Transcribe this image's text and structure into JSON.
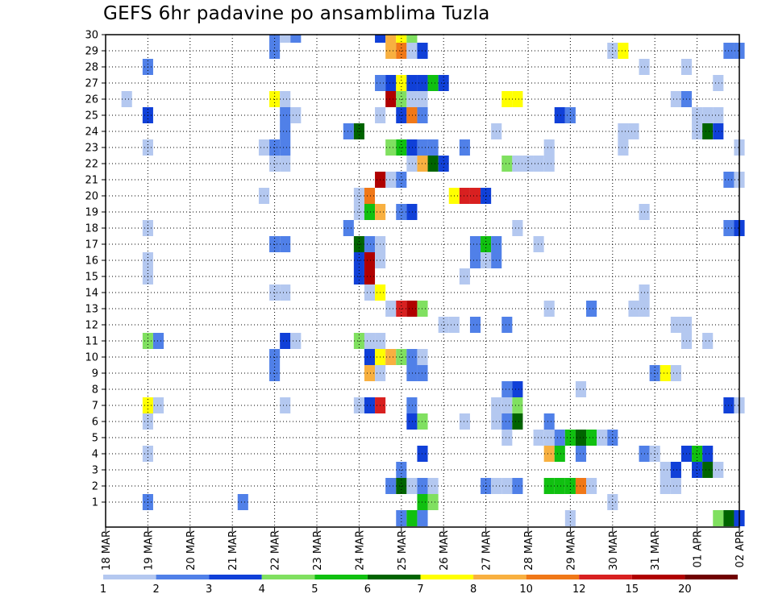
{
  "chart_data": {
    "type": "heatmap",
    "title": "GEFS 6hr padavine po ansamblima Tuzla",
    "xlabel": "",
    "ylabel": "",
    "x_tick_labels": [
      "18 MAR",
      "19 MAR",
      "20 MAR",
      "21 MAR",
      "22 MAR",
      "23 MAR",
      "24 MAR",
      "25 MAR",
      "26 MAR",
      "27 MAR",
      "28 MAR",
      "29 MAR",
      "30 MAR",
      "31 MAR",
      "01 APR",
      "02 APR"
    ],
    "y_tick_labels": [
      "1",
      "2",
      "3",
      "4",
      "5",
      "6",
      "7",
      "8",
      "9",
      "10",
      "11",
      "12",
      "13",
      "14",
      "15",
      "16",
      "17",
      "18",
      "19",
      "20",
      "21",
      "22",
      "23",
      "24",
      "25",
      "26",
      "27",
      "28",
      "29",
      "30"
    ],
    "xlim": [
      0,
      60
    ],
    "ylim": [
      0,
      30
    ],
    "grid": true,
    "legend": "bottom",
    "colorbar": {
      "levels": [
        "1",
        "2",
        "3",
        "4",
        "5",
        "6",
        "7",
        "8",
        "10",
        "12",
        "15",
        "20"
      ],
      "colors": [
        "#b4c8f0",
        "#5080e8",
        "#1040d8",
        "#80e060",
        "#10c010",
        "#006400",
        "#ffff00",
        "#f8b040",
        "#f07818",
        "#d82020",
        "#b00000",
        "#700000"
      ]
    },
    "cells": [
      [
        4,
        1,
        2
      ],
      [
        13,
        1,
        2
      ],
      [
        30,
        1,
        5
      ],
      [
        31,
        1,
        4
      ],
      [
        48,
        1,
        1
      ],
      [
        27,
        2,
        2
      ],
      [
        28,
        2,
        6
      ],
      [
        29,
        2,
        1
      ],
      [
        30,
        2,
        2
      ],
      [
        31,
        2,
        1
      ],
      [
        36,
        2,
        2
      ],
      [
        37,
        2,
        1
      ],
      [
        38,
        2,
        1
      ],
      [
        39,
        2,
        2
      ],
      [
        42,
        2,
        5
      ],
      [
        43,
        2,
        5
      ],
      [
        44,
        2,
        5
      ],
      [
        45,
        2,
        9
      ],
      [
        46,
        2,
        1
      ],
      [
        53,
        2,
        1
      ],
      [
        54,
        2,
        1
      ],
      [
        28,
        3,
        2
      ],
      [
        53,
        3,
        1
      ],
      [
        54,
        3,
        3
      ],
      [
        56,
        3,
        3
      ],
      [
        57,
        3,
        6
      ],
      [
        58,
        3,
        1
      ],
      [
        4,
        4,
        1
      ],
      [
        30,
        4,
        3
      ],
      [
        42,
        4,
        8
      ],
      [
        43,
        4,
        5
      ],
      [
        45,
        4,
        2
      ],
      [
        51,
        4,
        2
      ],
      [
        52,
        4,
        1
      ],
      [
        55,
        4,
        3
      ],
      [
        56,
        4,
        5
      ],
      [
        57,
        4,
        3
      ],
      [
        38,
        5,
        1
      ],
      [
        41,
        5,
        1
      ],
      [
        42,
        5,
        1
      ],
      [
        43,
        5,
        2
      ],
      [
        44,
        5,
        5
      ],
      [
        45,
        5,
        6
      ],
      [
        46,
        5,
        5
      ],
      [
        47,
        5,
        1
      ],
      [
        48,
        5,
        2
      ],
      [
        4,
        6,
        1
      ],
      [
        29,
        6,
        3
      ],
      [
        30,
        6,
        4
      ],
      [
        34,
        6,
        1
      ],
      [
        37,
        6,
        1
      ],
      [
        38,
        6,
        2
      ],
      [
        39,
        6,
        6
      ],
      [
        42,
        6,
        2
      ],
      [
        4,
        7,
        7
      ],
      [
        5,
        7,
        1
      ],
      [
        17,
        7,
        1
      ],
      [
        24,
        7,
        1
      ],
      [
        25,
        7,
        3
      ],
      [
        26,
        7,
        10
      ],
      [
        29,
        7,
        2
      ],
      [
        37,
        7,
        1
      ],
      [
        38,
        7,
        1
      ],
      [
        39,
        7,
        4
      ],
      [
        59,
        7,
        3
      ],
      [
        60,
        7,
        1
      ],
      [
        38,
        8,
        2
      ],
      [
        39,
        8,
        3
      ],
      [
        45,
        8,
        1
      ],
      [
        16,
        9,
        2
      ],
      [
        25,
        9,
        8
      ],
      [
        26,
        9,
        1
      ],
      [
        29,
        9,
        2
      ],
      [
        30,
        9,
        2
      ],
      [
        52,
        9,
        2
      ],
      [
        53,
        9,
        7
      ],
      [
        54,
        9,
        1
      ],
      [
        16,
        10,
        2
      ],
      [
        25,
        10,
        3
      ],
      [
        26,
        10,
        7
      ],
      [
        27,
        10,
        8
      ],
      [
        28,
        10,
        4
      ],
      [
        29,
        10,
        2
      ],
      [
        30,
        10,
        1
      ],
      [
        4,
        11,
        4
      ],
      [
        5,
        11,
        2
      ],
      [
        17,
        11,
        3
      ],
      [
        18,
        11,
        1
      ],
      [
        24,
        11,
        4
      ],
      [
        25,
        11,
        1
      ],
      [
        26,
        11,
        1
      ],
      [
        55,
        11,
        1
      ],
      [
        57,
        11,
        1
      ],
      [
        32,
        12,
        1
      ],
      [
        33,
        12,
        1
      ],
      [
        35,
        12,
        2
      ],
      [
        38,
        12,
        2
      ],
      [
        54,
        12,
        1
      ],
      [
        55,
        12,
        1
      ],
      [
        27,
        13,
        1
      ],
      [
        28,
        13,
        10
      ],
      [
        29,
        13,
        11
      ],
      [
        30,
        13,
        4
      ],
      [
        42,
        13,
        1
      ],
      [
        46,
        13,
        2
      ],
      [
        50,
        13,
        1
      ],
      [
        51,
        13,
        1
      ],
      [
        16,
        14,
        1
      ],
      [
        17,
        14,
        1
      ],
      [
        25,
        14,
        1
      ],
      [
        26,
        14,
        7
      ],
      [
        51,
        14,
        1
      ],
      [
        4,
        15,
        1
      ],
      [
        24,
        15,
        3
      ],
      [
        25,
        15,
        11
      ],
      [
        34,
        15,
        1
      ],
      [
        4,
        16,
        1
      ],
      [
        24,
        16,
        3
      ],
      [
        25,
        16,
        11
      ],
      [
        26,
        16,
        1
      ],
      [
        35,
        16,
        2
      ],
      [
        36,
        16,
        1
      ],
      [
        37,
        16,
        2
      ],
      [
        16,
        17,
        2
      ],
      [
        17,
        17,
        2
      ],
      [
        24,
        17,
        6
      ],
      [
        25,
        17,
        2
      ],
      [
        26,
        17,
        1
      ],
      [
        35,
        17,
        2
      ],
      [
        36,
        17,
        5
      ],
      [
        37,
        17,
        2
      ],
      [
        41,
        17,
        1
      ],
      [
        4,
        18,
        1
      ],
      [
        23,
        18,
        2
      ],
      [
        39,
        18,
        1
      ],
      [
        59,
        18,
        2
      ],
      [
        60,
        18,
        3
      ],
      [
        24,
        19,
        1
      ],
      [
        25,
        19,
        5
      ],
      [
        26,
        19,
        8
      ],
      [
        28,
        19,
        2
      ],
      [
        29,
        19,
        3
      ],
      [
        51,
        19,
        1
      ],
      [
        15,
        20,
        1
      ],
      [
        24,
        20,
        1
      ],
      [
        25,
        20,
        9
      ],
      [
        33,
        20,
        7
      ],
      [
        34,
        20,
        10
      ],
      [
        35,
        20,
        10
      ],
      [
        36,
        20,
        3
      ],
      [
        27,
        21,
        1
      ],
      [
        26,
        21,
        11
      ],
      [
        28,
        21,
        2
      ],
      [
        59,
        21,
        2
      ],
      [
        60,
        21,
        1
      ],
      [
        16,
        22,
        1
      ],
      [
        17,
        22,
        1
      ],
      [
        29,
        22,
        1
      ],
      [
        30,
        22,
        8
      ],
      [
        31,
        22,
        6
      ],
      [
        32,
        22,
        3
      ],
      [
        38,
        22,
        4
      ],
      [
        39,
        22,
        1
      ],
      [
        40,
        22,
        1
      ],
      [
        41,
        22,
        1
      ],
      [
        42,
        22,
        1
      ],
      [
        4,
        23,
        1
      ],
      [
        15,
        23,
        1
      ],
      [
        16,
        23,
        2
      ],
      [
        17,
        23,
        2
      ],
      [
        27,
        23,
        4
      ],
      [
        28,
        23,
        5
      ],
      [
        29,
        23,
        3
      ],
      [
        30,
        23,
        2
      ],
      [
        31,
        23,
        2
      ],
      [
        34,
        23,
        2
      ],
      [
        42,
        23,
        1
      ],
      [
        49,
        23,
        1
      ],
      [
        60,
        23,
        1
      ],
      [
        17,
        24,
        2
      ],
      [
        23,
        24,
        2
      ],
      [
        24,
        24,
        6
      ],
      [
        37,
        24,
        1
      ],
      [
        49,
        24,
        1
      ],
      [
        50,
        24,
        1
      ],
      [
        56,
        24,
        1
      ],
      [
        57,
        24,
        6
      ],
      [
        58,
        24,
        3
      ],
      [
        4,
        25,
        3
      ],
      [
        17,
        25,
        2
      ],
      [
        18,
        25,
        1
      ],
      [
        26,
        25,
        1
      ],
      [
        28,
        25,
        3
      ],
      [
        29,
        25,
        9
      ],
      [
        30,
        25,
        2
      ],
      [
        43,
        25,
        3
      ],
      [
        44,
        25,
        2
      ],
      [
        56,
        25,
        1
      ],
      [
        57,
        25,
        1
      ],
      [
        58,
        25,
        1
      ],
      [
        2,
        26,
        1
      ],
      [
        16,
        26,
        7
      ],
      [
        17,
        26,
        1
      ],
      [
        27,
        26,
        11
      ],
      [
        28,
        26,
        4
      ],
      [
        29,
        26,
        1
      ],
      [
        30,
        26,
        1
      ],
      [
        38,
        26,
        7
      ],
      [
        39,
        26,
        7
      ],
      [
        54,
        26,
        1
      ],
      [
        55,
        26,
        2
      ],
      [
        26,
        27,
        2
      ],
      [
        27,
        27,
        3
      ],
      [
        28,
        27,
        7
      ],
      [
        29,
        27,
        3
      ],
      [
        30,
        27,
        3
      ],
      [
        31,
        27,
        5
      ],
      [
        32,
        27,
        3
      ],
      [
        58,
        27,
        1
      ],
      [
        4,
        28,
        2
      ],
      [
        51,
        28,
        1
      ],
      [
        55,
        28,
        1
      ],
      [
        16,
        29,
        2
      ],
      [
        27,
        29,
        8
      ],
      [
        28,
        29,
        9
      ],
      [
        29,
        29,
        1
      ],
      [
        30,
        29,
        3
      ],
      [
        48,
        29,
        1
      ],
      [
        49,
        29,
        7
      ],
      [
        59,
        29,
        2
      ],
      [
        60,
        29,
        2
      ],
      [
        16,
        30,
        2
      ],
      [
        17,
        30,
        1
      ],
      [
        18,
        30,
        2
      ],
      [
        26,
        30,
        3
      ],
      [
        27,
        30,
        8
      ],
      [
        28,
        30,
        7
      ],
      [
        29,
        30,
        4
      ],
      [
        28,
        0,
        2
      ],
      [
        29,
        0,
        5
      ],
      [
        30,
        0,
        2
      ],
      [
        44,
        0,
        1
      ],
      [
        58,
        0,
        4
      ],
      [
        59,
        0,
        6
      ],
      [
        60,
        0,
        3
      ]
    ]
  }
}
